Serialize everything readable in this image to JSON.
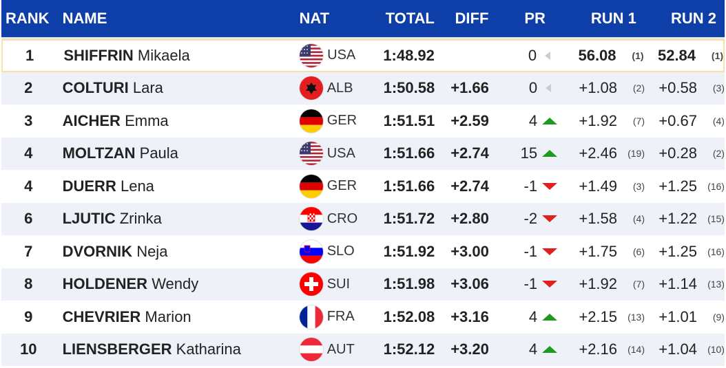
{
  "header": {
    "rank": "RANK",
    "name": "NAME",
    "nat": "NAT",
    "total": "TOTAL",
    "diff": "DIFF",
    "pr": "PR",
    "run1": "RUN 1",
    "run2": "RUN 2"
  },
  "colors": {
    "header_bg": "#0e3ea7",
    "up": "#1e9a1e",
    "down": "#e02020",
    "neutral": "#cccccc"
  },
  "rows": [
    {
      "rank": "1",
      "last": "SHIFFRIN",
      "first": "Mikaela",
      "nat": "USA",
      "flag": "usa",
      "total": "1:48.92",
      "diff": "",
      "pr": "0",
      "trend": "neutral",
      "run1": "56.08",
      "run1_pos": "(1)",
      "run2": "52.84",
      "run2_pos": "(1)"
    },
    {
      "rank": "2",
      "last": "COLTURI",
      "first": "Lara",
      "nat": "ALB",
      "flag": "alb",
      "total": "1:50.58",
      "diff": "+1.66",
      "pr": "0",
      "trend": "neutral",
      "run1": "+1.08",
      "run1_pos": "(2)",
      "run2": "+0.58",
      "run2_pos": "(3)"
    },
    {
      "rank": "3",
      "last": "AICHER",
      "first": "Emma",
      "nat": "GER",
      "flag": "ger",
      "total": "1:51.51",
      "diff": "+2.59",
      "pr": "4",
      "trend": "up",
      "run1": "+1.92",
      "run1_pos": "(7)",
      "run2": "+0.67",
      "run2_pos": "(4)"
    },
    {
      "rank": "4",
      "last": "MOLTZAN",
      "first": "Paula",
      "nat": "USA",
      "flag": "usa",
      "total": "1:51.66",
      "diff": "+2.74",
      "pr": "15",
      "trend": "up",
      "run1": "+2.46",
      "run1_pos": "(19)",
      "run2": "+0.28",
      "run2_pos": "(2)"
    },
    {
      "rank": "4",
      "last": "DUERR",
      "first": "Lena",
      "nat": "GER",
      "flag": "ger",
      "total": "1:51.66",
      "diff": "+2.74",
      "pr": "-1",
      "trend": "down",
      "run1": "+1.49",
      "run1_pos": "(3)",
      "run2": "+1.25",
      "run2_pos": "(16)"
    },
    {
      "rank": "6",
      "last": "LJUTIC",
      "first": "Zrinka",
      "nat": "CRO",
      "flag": "cro",
      "total": "1:51.72",
      "diff": "+2.80",
      "pr": "-2",
      "trend": "down",
      "run1": "+1.58",
      "run1_pos": "(4)",
      "run2": "+1.22",
      "run2_pos": "(15)"
    },
    {
      "rank": "7",
      "last": "DVORNIK",
      "first": "Neja",
      "nat": "SLO",
      "flag": "slo",
      "total": "1:51.92",
      "diff": "+3.00",
      "pr": "-1",
      "trend": "down",
      "run1": "+1.75",
      "run1_pos": "(6)",
      "run2": "+1.25",
      "run2_pos": "(16)"
    },
    {
      "rank": "8",
      "last": "HOLDENER",
      "first": "Wendy",
      "nat": "SUI",
      "flag": "sui",
      "total": "1:51.98",
      "diff": "+3.06",
      "pr": "-1",
      "trend": "down",
      "run1": "+1.92",
      "run1_pos": "(7)",
      "run2": "+1.14",
      "run2_pos": "(13)"
    },
    {
      "rank": "9",
      "last": "CHEVRIER",
      "first": "Marion",
      "nat": "FRA",
      "flag": "fra",
      "total": "1:52.08",
      "diff": "+3.16",
      "pr": "4",
      "trend": "up",
      "run1": "+2.15",
      "run1_pos": "(13)",
      "run2": "+1.01",
      "run2_pos": "(9)"
    },
    {
      "rank": "10",
      "last": "LIENSBERGER",
      "first": "Katharina",
      "nat": "AUT",
      "flag": "aut",
      "total": "1:52.12",
      "diff": "+3.20",
      "pr": "4",
      "trend": "up",
      "run1": "+2.16",
      "run1_pos": "(14)",
      "run2": "+1.04",
      "run2_pos": "(10)"
    }
  ]
}
